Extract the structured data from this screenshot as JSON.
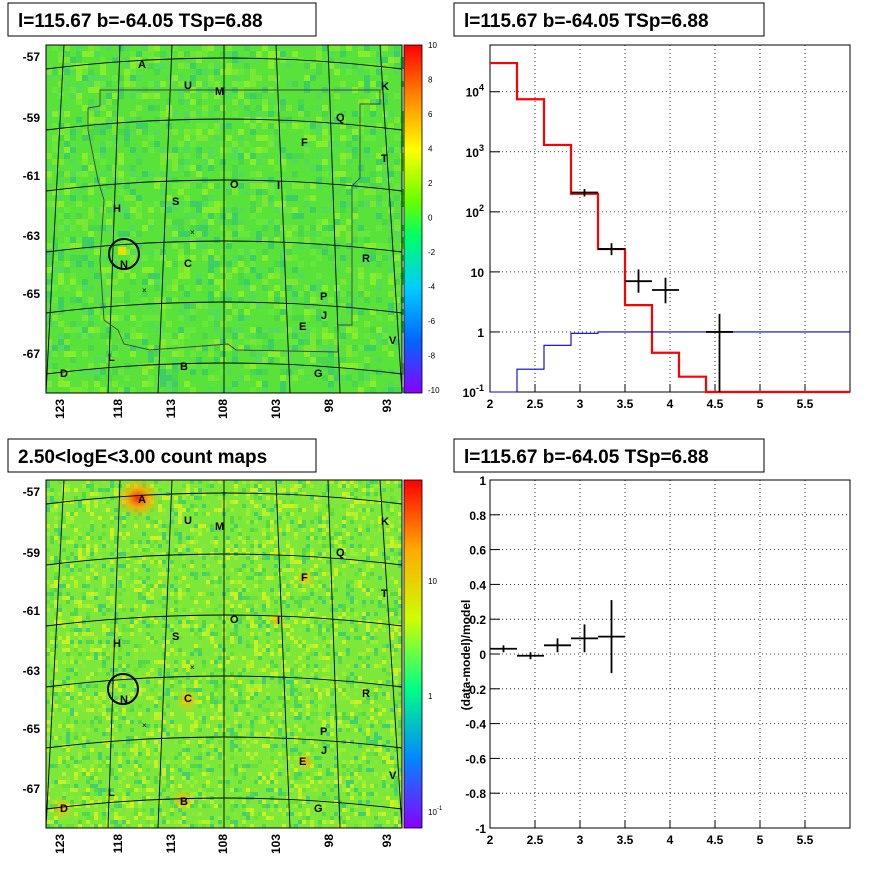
{
  "panels": {
    "map_top": {
      "title": "l=115.67 b=-64.05 TSp=6.88",
      "lat_labels": [
        "-57",
        "-59",
        "-61",
        "-63",
        "-65",
        "-67"
      ],
      "lon_labels": [
        "123",
        "118",
        "113",
        "108",
        "103",
        "98",
        "93"
      ],
      "colorbar_labels": [
        "10",
        "8",
        "6",
        "4",
        "2",
        "0",
        "-2",
        "-4",
        "-6",
        "-8",
        "-10"
      ]
    },
    "map_bottom": {
      "title": "2.50<logE<3.00 count maps",
      "lat_labels": [
        "-57",
        "-59",
        "-61",
        "-63",
        "-65",
        "-67"
      ],
      "lon_labels": [
        "123",
        "118",
        "113",
        "108",
        "103",
        "98",
        "93"
      ],
      "colorbar_labels": [
        "10",
        "1",
        "10"
      ],
      "colorbar_minor_exponent": "-1"
    }
  },
  "source_labels": [
    "A",
    "U",
    "M",
    "K",
    "Q",
    "F",
    "T",
    "O",
    "I",
    "H",
    "S",
    "N",
    "C",
    "R",
    "P",
    "J",
    "E",
    "L",
    "B",
    "D",
    "G",
    "V"
  ],
  "colors": {
    "model": "#ff0000",
    "data": "#000000",
    "source": "#0000cc"
  },
  "chart_data": [
    {
      "type": "line",
      "title": "l=115.67 b=-64.05 TSp=6.88",
      "xlabel": "",
      "ylabel": "",
      "xlim": [
        2,
        6
      ],
      "ylim": [
        0.1,
        60000
      ],
      "yscale": "log",
      "x_ticks": [
        "2",
        "2.5",
        "3",
        "3.5",
        "4",
        "4.5",
        "5",
        "5.5"
      ],
      "y_ticks": [
        "10^4",
        "10^3",
        "10^2",
        "10",
        "1",
        "10^-1"
      ],
      "grid": true,
      "series": [
        {
          "style": "step",
          "color": "#ff0000",
          "edges": [
            2.0,
            2.3,
            2.6,
            2.9,
            3.2,
            3.5,
            3.8,
            4.1,
            4.4,
            6.0
          ],
          "values": [
            30000,
            7500,
            1300,
            200,
            24,
            2.8,
            0.45,
            0.18,
            0.1
          ]
        },
        {
          "style": "step",
          "color": "#0000cc",
          "edges": [
            2.0,
            2.3,
            2.6,
            2.9,
            3.2,
            6.0
          ],
          "values": [
            0.08,
            0.24,
            0.6,
            0.95,
            1.0
          ]
        },
        {
          "style": "errorbar",
          "color": "#000000",
          "x": [
            3.05,
            3.35,
            3.65,
            3.95,
            4.55
          ],
          "xerr": [
            0.15,
            0.15,
            0.15,
            0.15,
            0.15
          ],
          "y": [
            210,
            24,
            7,
            5,
            1
          ],
          "ylow": [
            180,
            19,
            4.5,
            3,
            0.1
          ],
          "yhigh": [
            240,
            30,
            11,
            8,
            2
          ]
        }
      ]
    },
    {
      "type": "scatter",
      "title": "l=115.67 b=-64.05 TSp=6.88",
      "xlabel": "",
      "ylabel": "(data-model)/model",
      "xlim": [
        2,
        6
      ],
      "ylim": [
        -1,
        1
      ],
      "x_ticks": [
        "2",
        "2.5",
        "3",
        "3.5",
        "4",
        "4.5",
        "5",
        "5.5"
      ],
      "y_ticks": [
        "1",
        "0.8",
        "0.6",
        "0.4",
        "0.2",
        "0",
        "-0.2",
        "-0.4",
        "-0.6",
        "-0.8",
        "-1"
      ],
      "grid": true,
      "series": [
        {
          "style": "errorbar",
          "color": "#000000",
          "x": [
            2.15,
            2.45,
            2.75,
            3.05,
            3.35
          ],
          "xerr": [
            0.15,
            0.15,
            0.15,
            0.15,
            0.15
          ],
          "y": [
            0.03,
            -0.01,
            0.05,
            0.09,
            0.1
          ],
          "yerr": [
            0.02,
            0.02,
            0.04,
            0.08,
            0.21
          ]
        }
      ]
    }
  ]
}
